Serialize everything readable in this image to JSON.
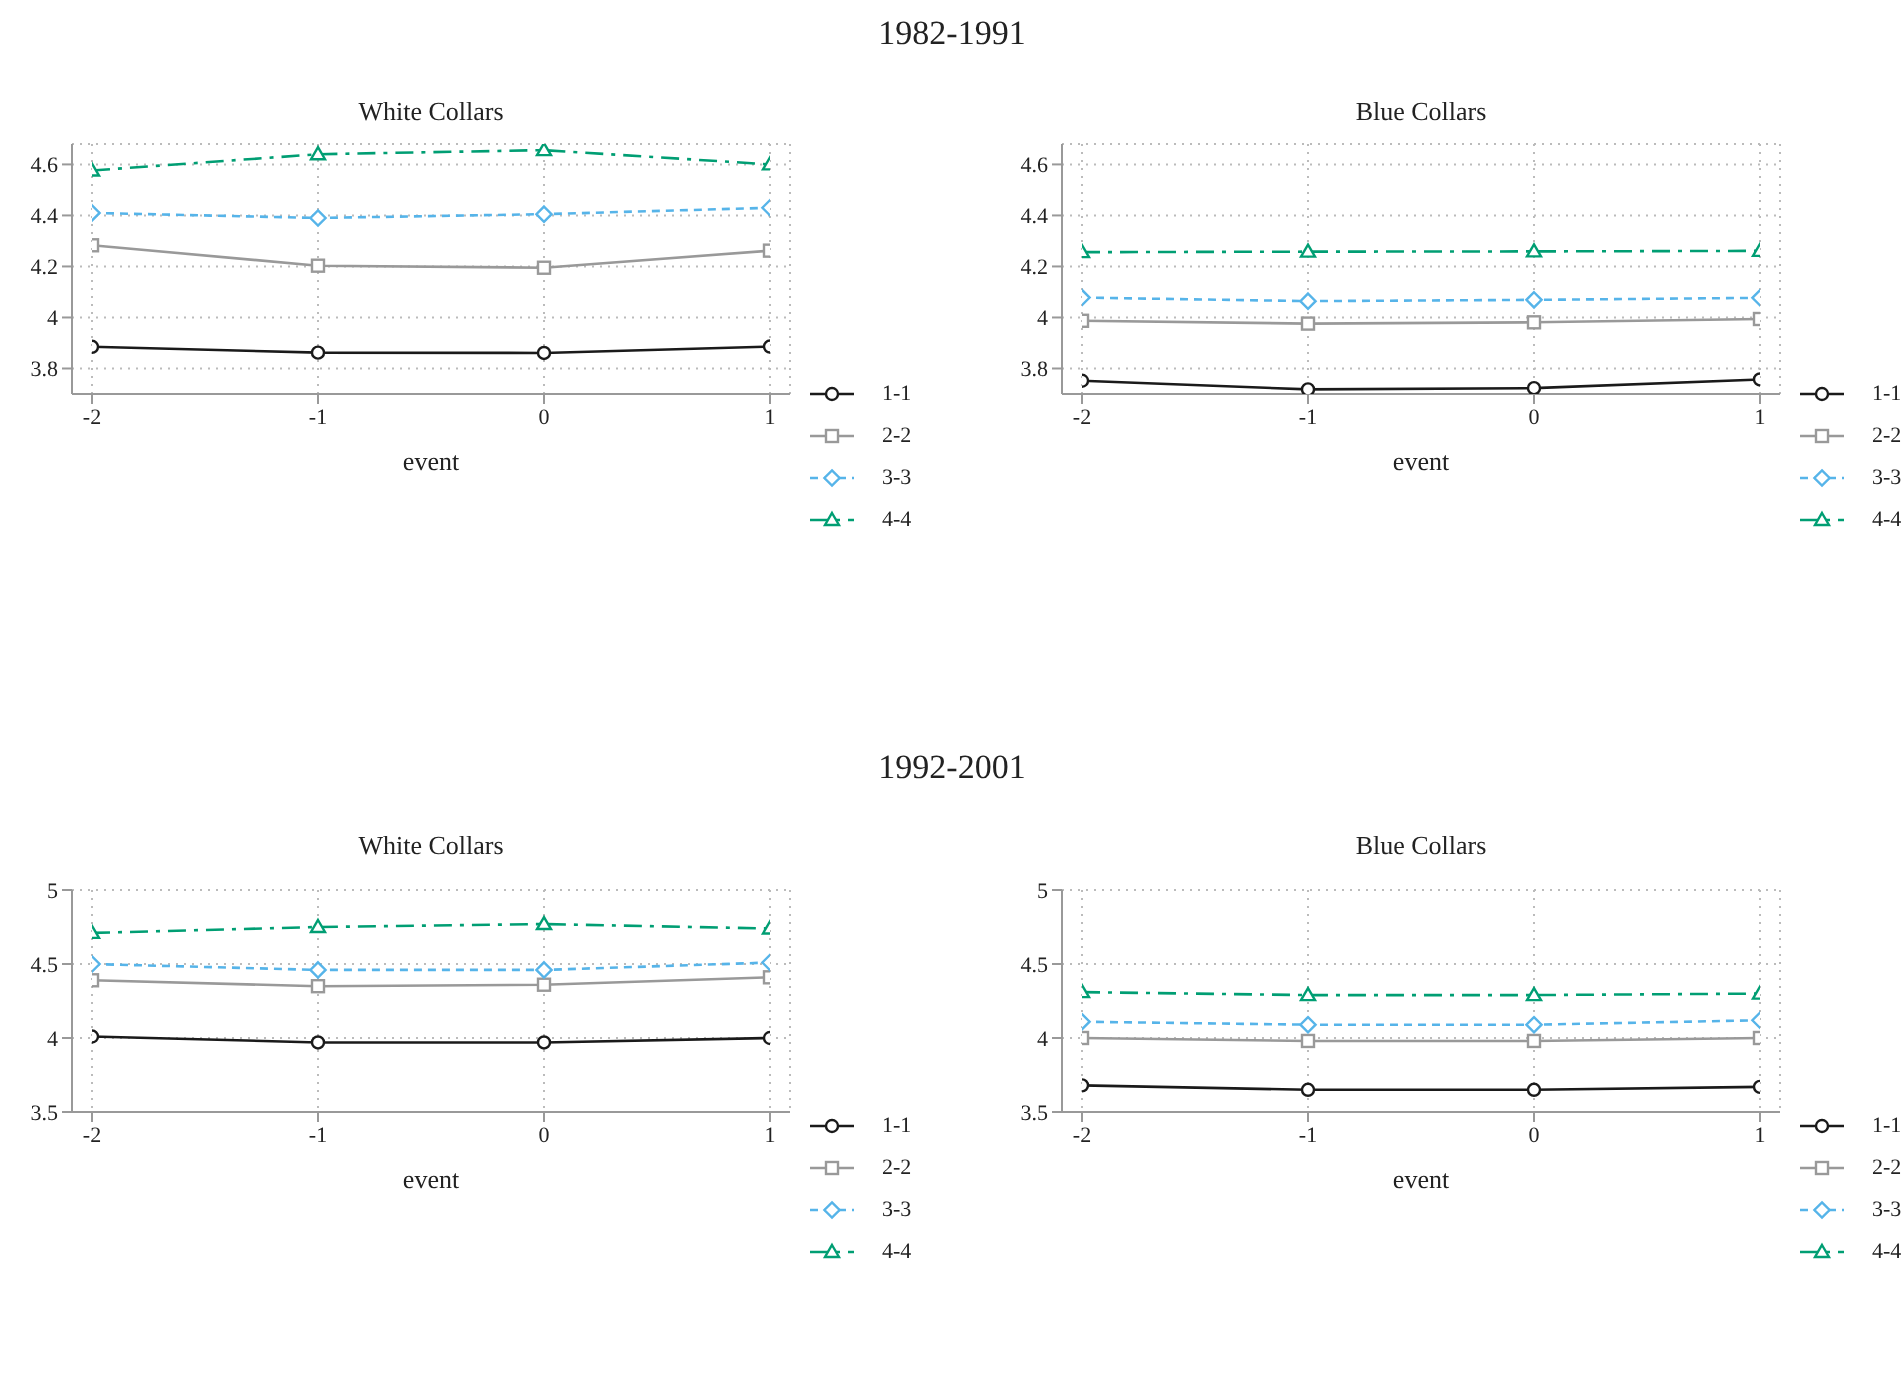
{
  "chart_data": [
    {
      "type": "line",
      "annotations": [
        "1982-1991"
      ],
      "title": "White Collars",
      "xlabel": "event",
      "x": [
        -2,
        -1,
        0,
        1
      ],
      "xlim": [
        -2,
        1
      ],
      "xticks": [
        -2,
        -1,
        0,
        1
      ],
      "ylim": [
        3.7,
        4.68
      ],
      "yticks": [
        3.8,
        4,
        4.2,
        4.4,
        4.6
      ],
      "grid": true,
      "legend": "right",
      "series": [
        {
          "name": "1-1",
          "color": "#1a1a1a",
          "marker": "circle",
          "line_style": "solid",
          "values": [
            3.885,
            3.862,
            3.861,
            3.886
          ]
        },
        {
          "name": "2-2",
          "color": "#999999",
          "marker": "square",
          "line_style": "solid",
          "values": [
            4.283,
            4.203,
            4.195,
            4.262
          ]
        },
        {
          "name": "3-3",
          "color": "#56b4e9",
          "marker": "diamond",
          "line_style": "dashed",
          "values": [
            4.41,
            4.39,
            4.405,
            4.43
          ]
        },
        {
          "name": "4-4",
          "color": "#009e73",
          "marker": "triangle",
          "line_style": "dashdot",
          "values": [
            4.576,
            4.64,
            4.656,
            4.6
          ]
        }
      ]
    },
    {
      "type": "line",
      "title": "Blue Collars",
      "xlabel": "event",
      "x": [
        -2,
        -1,
        0,
        1
      ],
      "xlim": [
        -2,
        1
      ],
      "xticks": [
        -2,
        -1,
        0,
        1
      ],
      "ylim": [
        3.7,
        4.68
      ],
      "yticks": [
        3.8,
        4,
        4.2,
        4.4,
        4.6
      ],
      "grid": true,
      "legend": "right",
      "series": [
        {
          "name": "1-1",
          "color": "#1a1a1a",
          "marker": "circle",
          "line_style": "solid",
          "values": [
            3.752,
            3.718,
            3.723,
            3.757
          ]
        },
        {
          "name": "2-2",
          "color": "#999999",
          "marker": "square",
          "line_style": "solid",
          "values": [
            3.987,
            3.976,
            3.981,
            3.994
          ]
        },
        {
          "name": "3-3",
          "color": "#56b4e9",
          "marker": "diamond",
          "line_style": "dashed",
          "values": [
            4.078,
            4.064,
            4.069,
            4.077
          ]
        },
        {
          "name": "4-4",
          "color": "#009e73",
          "marker": "triangle",
          "line_style": "dashdot",
          "values": [
            4.256,
            4.258,
            4.259,
            4.261
          ]
        }
      ]
    },
    {
      "type": "line",
      "annotations": [
        "1992-2001"
      ],
      "title": "White Collars",
      "xlabel": "event",
      "x": [
        -2,
        -1,
        0,
        1
      ],
      "xlim": [
        -2,
        1
      ],
      "xticks": [
        -2,
        -1,
        0,
        1
      ],
      "ylim": [
        3.5,
        5
      ],
      "yticks": [
        3.5,
        4,
        4.5,
        5
      ],
      "grid": true,
      "legend": "right",
      "series": [
        {
          "name": "1-1",
          "color": "#1a1a1a",
          "marker": "circle",
          "line_style": "solid",
          "values": [
            4.01,
            3.97,
            3.97,
            4.0
          ]
        },
        {
          "name": "2-2",
          "color": "#999999",
          "marker": "square",
          "line_style": "solid",
          "values": [
            4.39,
            4.35,
            4.36,
            4.41
          ]
        },
        {
          "name": "3-3",
          "color": "#56b4e9",
          "marker": "diamond",
          "line_style": "dashed",
          "values": [
            4.5,
            4.46,
            4.46,
            4.51
          ]
        },
        {
          "name": "4-4",
          "color": "#009e73",
          "marker": "triangle",
          "line_style": "dashdot",
          "values": [
            4.71,
            4.75,
            4.77,
            4.74
          ]
        }
      ]
    },
    {
      "type": "line",
      "title": "Blue Collars",
      "xlabel": "event",
      "x": [
        -2,
        -1,
        0,
        1
      ],
      "xlim": [
        -2,
        1
      ],
      "xticks": [
        -2,
        -1,
        0,
        1
      ],
      "ylim": [
        3.5,
        5
      ],
      "yticks": [
        3.5,
        4,
        4.5,
        5
      ],
      "grid": true,
      "legend": "right",
      "series": [
        {
          "name": "1-1",
          "color": "#1a1a1a",
          "marker": "circle",
          "line_style": "solid",
          "values": [
            3.68,
            3.65,
            3.65,
            3.67
          ]
        },
        {
          "name": "2-2",
          "color": "#999999",
          "marker": "square",
          "line_style": "solid",
          "values": [
            4.0,
            3.98,
            3.98,
            4.0
          ]
        },
        {
          "name": "3-3",
          "color": "#56b4e9",
          "marker": "diamond",
          "line_style": "dashed",
          "values": [
            4.11,
            4.09,
            4.09,
            4.12
          ]
        },
        {
          "name": "4-4",
          "color": "#009e73",
          "marker": "triangle",
          "line_style": "dashdot",
          "values": [
            4.31,
            4.29,
            4.29,
            4.3
          ]
        }
      ]
    }
  ]
}
